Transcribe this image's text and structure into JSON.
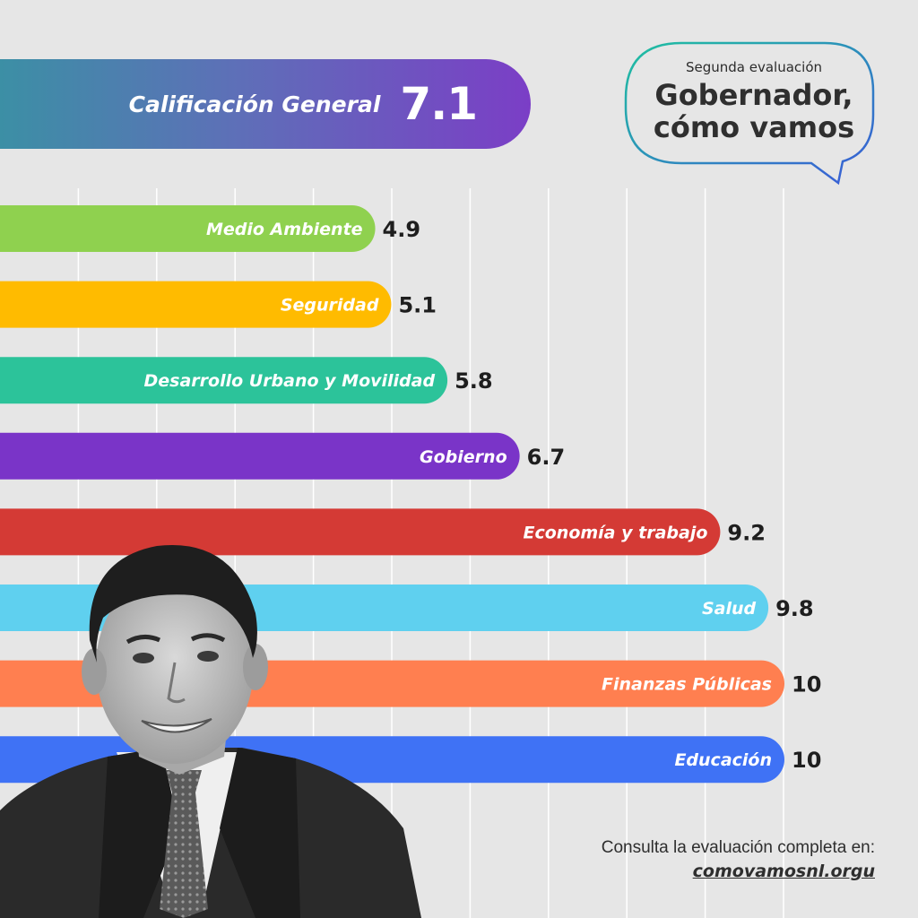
{
  "header": {
    "overall_label": "Calificación General",
    "overall_value": "7.1"
  },
  "bubble": {
    "subtitle": "Segunda evaluación",
    "title_line1": "Gobernador,",
    "title_line2": "cómo vamos"
  },
  "footer": {
    "text": "Consulta la evaluación completa en:",
    "link": "comovamosnl.orgu"
  },
  "colors": {
    "background": "#e6e6e6",
    "gridline": "#ffffff",
    "gradient_start": "#3c8fa5",
    "gradient_end": "#7b3ec6",
    "bubble_stroke_start": "#1fc0a0",
    "bubble_stroke_end": "#3a5bd8"
  },
  "photo": {
    "icon": "person-portrait-icon"
  },
  "chart_data": {
    "type": "bar",
    "orientation": "horizontal",
    "title": "Calificación General 7.1",
    "categories": [
      "Medio Ambiente",
      "Seguridad",
      "Desarrollo Urbano y Movilidad",
      "Gobierno",
      "Economía y trabajo",
      "Salud",
      "Finanzas Públicas",
      "Educación"
    ],
    "values": [
      4.9,
      5.1,
      5.8,
      6.7,
      9.2,
      9.8,
      10,
      10
    ],
    "value_labels": [
      "4.9",
      "5.1",
      "5.8",
      "6.7",
      "9.2",
      "9.8",
      "10",
      "10"
    ],
    "bar_colors": [
      "#8fd14f",
      "#ffbb00",
      "#2cc39a",
      "#7a34c8",
      "#d43a35",
      "#5fd0ef",
      "#ff7f50",
      "#3f72f5"
    ],
    "xlim": [
      0,
      10
    ],
    "grid": true,
    "grid_step": 1
  }
}
